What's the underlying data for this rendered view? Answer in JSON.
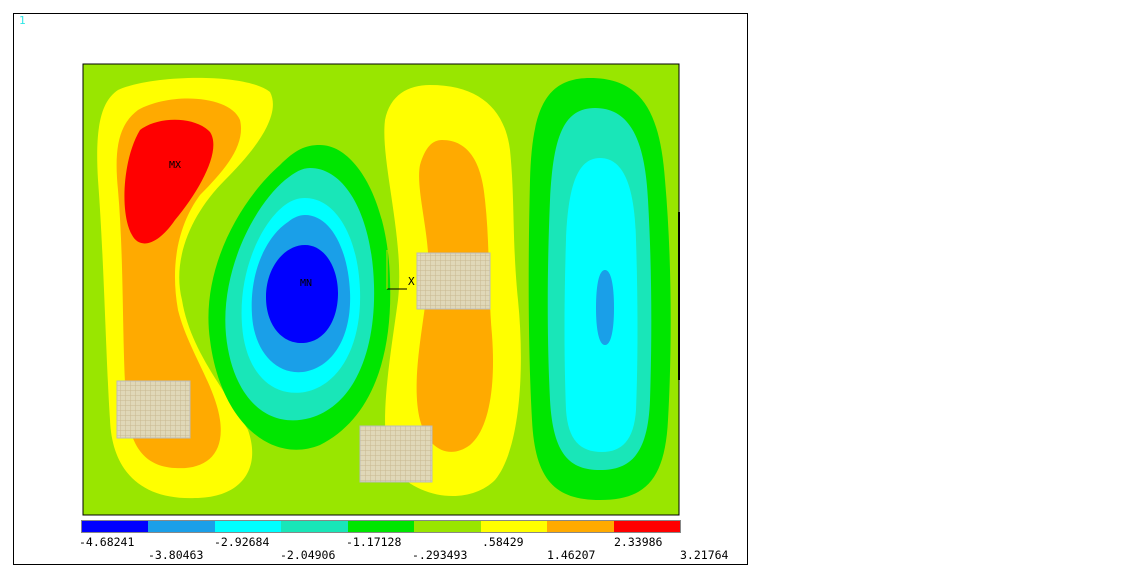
{
  "window": {
    "number": "1"
  },
  "markers": {
    "max": "MX",
    "min": "MN",
    "axis": "X"
  },
  "legend": {
    "colors": [
      "#0000ff",
      "#1a9fe8",
      "#00ffff",
      "#19e6b8",
      "#00e600",
      "#99e600",
      "#ffff00",
      "#ffaa00",
      "#ff0000"
    ],
    "labels_row1": [
      "-4.68241",
      "-2.92684",
      "-1.17128",
      ".58429",
      "2.33986"
    ],
    "labels_row2": [
      "-3.80463",
      "-2.04906",
      "-.293493",
      "1.46207",
      "3.21764"
    ]
  }
}
